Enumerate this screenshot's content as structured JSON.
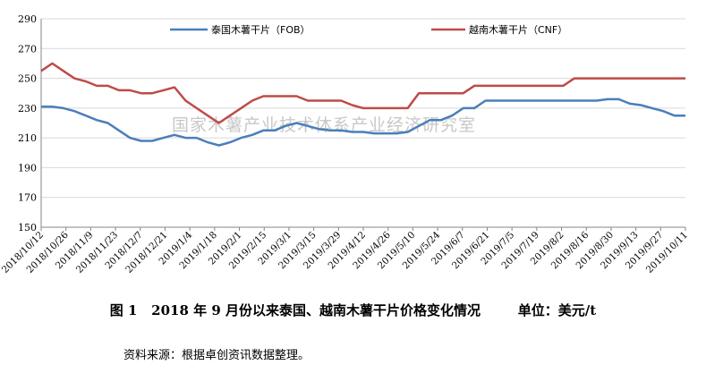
{
  "chart_data": {
    "type": "line",
    "watermark": "国家木薯产业技术体系产业经济研究室",
    "ylim": [
      150,
      290
    ],
    "yticks": [
      150,
      170,
      190,
      210,
      230,
      250,
      270,
      290
    ],
    "xticks": [
      "2018/10/12",
      "2018/10/26",
      "2018/11/9",
      "2018/11/23",
      "2018/12/7",
      "2018/12/21",
      "2019/1/4",
      "2019/1/18",
      "2019/2/1",
      "2019/2/15",
      "2019/3/1",
      "2019/3/15",
      "2019/3/29",
      "2019/4/12",
      "2019/4/26",
      "2019/5/10",
      "2019/5/24",
      "2019/6/7",
      "2019/6/21",
      "2019/7/5",
      "2019/7/19",
      "2019/8/2",
      "2019/8/16",
      "2019/8/30",
      "2019/9/13",
      "2019/9/27",
      "2019/10/11"
    ],
    "legend_position": "top",
    "series": [
      {
        "name": "泰国木薯干片（FOB）",
        "color": "#4a7ebb",
        "values": [
          231,
          231,
          230,
          228,
          225,
          222,
          220,
          215,
          210,
          208,
          208,
          210,
          212,
          210,
          210,
          207,
          205,
          207,
          210,
          212,
          215,
          215,
          218,
          220,
          218,
          216,
          215,
          215,
          214,
          214,
          213,
          213,
          213,
          214,
          218,
          222,
          222,
          225,
          230,
          230,
          235,
          235,
          235,
          235,
          235,
          235,
          235,
          235,
          235,
          235,
          235,
          236,
          236,
          233,
          232,
          230,
          228,
          225,
          225
        ]
      },
      {
        "name": "越南木薯干片（CNF）",
        "color": "#be4b48",
        "values": [
          255,
          260,
          255,
          250,
          248,
          245,
          245,
          242,
          242,
          240,
          240,
          242,
          244,
          235,
          230,
          225,
          220,
          225,
          230,
          235,
          238,
          238,
          238,
          238,
          235,
          235,
          235,
          235,
          232,
          230,
          230,
          230,
          230,
          230,
          240,
          240,
          240,
          240,
          240,
          245,
          245,
          245,
          245,
          245,
          245,
          245,
          245,
          245,
          250,
          250,
          250,
          250,
          250,
          250,
          250,
          250,
          250,
          250,
          250
        ]
      }
    ]
  },
  "caption": {
    "figure": "图 1",
    "title": "2018 年 9 月份以来泰国、越南木薯干片价格变化情况",
    "unit": "单位：美元/t"
  },
  "source": "资料来源：根据卓创资讯数据整理。"
}
